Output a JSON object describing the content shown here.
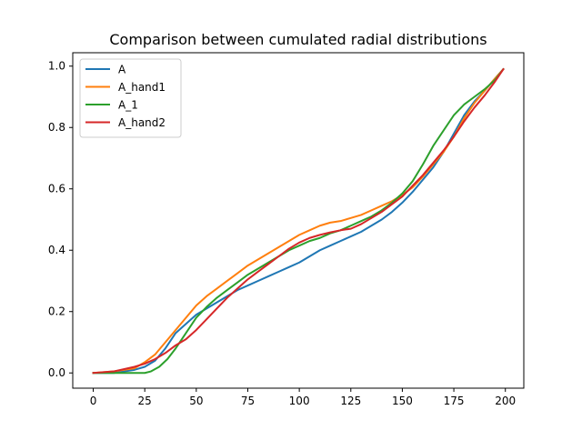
{
  "chart_data": {
    "type": "line",
    "title": "Comparison between cumulated radial distributions",
    "xlabel": "",
    "ylabel": "",
    "xlim": [
      -9.95,
      208.95
    ],
    "ylim": [
      -0.0497,
      1.0437
    ],
    "x_ticks": [
      0,
      25,
      50,
      75,
      100,
      125,
      150,
      175,
      200
    ],
    "x_tick_labels": [
      "0",
      "25",
      "50",
      "75",
      "100",
      "125",
      "150",
      "175",
      "200"
    ],
    "y_ticks": [
      0.0,
      0.2,
      0.4,
      0.6,
      0.8,
      1.0
    ],
    "y_tick_labels": [
      "0.0",
      "0.2",
      "0.4",
      "0.6",
      "0.8",
      "1.0"
    ],
    "grid": false,
    "legend_position": "upper-left",
    "series": [
      {
        "name": "A",
        "color": "#1f77b4",
        "x": [
          0,
          10,
          20,
          25,
          30,
          35,
          40,
          45,
          50,
          55,
          60,
          65,
          70,
          75,
          80,
          85,
          90,
          95,
          100,
          105,
          110,
          115,
          120,
          125,
          130,
          135,
          140,
          145,
          150,
          155,
          160,
          165,
          170,
          175,
          180,
          185,
          190,
          195,
          199
        ],
        "y": [
          0.0,
          0.0,
          0.01,
          0.02,
          0.04,
          0.08,
          0.13,
          0.16,
          0.19,
          0.21,
          0.23,
          0.25,
          0.27,
          0.285,
          0.3,
          0.315,
          0.33,
          0.345,
          0.36,
          0.38,
          0.4,
          0.415,
          0.43,
          0.445,
          0.46,
          0.48,
          0.5,
          0.525,
          0.555,
          0.59,
          0.63,
          0.67,
          0.72,
          0.78,
          0.84,
          0.885,
          0.92,
          0.96,
          0.99
        ]
      },
      {
        "name": "A_hand1",
        "color": "#ff7f0e",
        "x": [
          0,
          10,
          20,
          25,
          30,
          35,
          40,
          45,
          50,
          55,
          60,
          65,
          70,
          75,
          80,
          85,
          90,
          95,
          100,
          105,
          110,
          115,
          120,
          125,
          130,
          135,
          140,
          145,
          150,
          155,
          160,
          165,
          170,
          175,
          180,
          185,
          190,
          195,
          199
        ],
        "y": [
          0.0,
          0.005,
          0.015,
          0.035,
          0.06,
          0.1,
          0.14,
          0.18,
          0.22,
          0.25,
          0.275,
          0.3,
          0.325,
          0.35,
          0.37,
          0.39,
          0.41,
          0.43,
          0.45,
          0.465,
          0.48,
          0.49,
          0.495,
          0.505,
          0.515,
          0.53,
          0.545,
          0.56,
          0.58,
          0.605,
          0.64,
          0.68,
          0.72,
          0.77,
          0.83,
          0.88,
          0.92,
          0.96,
          0.99
        ]
      },
      {
        "name": "A_1",
        "color": "#2ca02c",
        "x": [
          0,
          10,
          20,
          25,
          28,
          32,
          36,
          40,
          45,
          50,
          55,
          60,
          65,
          70,
          75,
          80,
          85,
          90,
          95,
          100,
          105,
          110,
          115,
          120,
          125,
          130,
          135,
          140,
          145,
          150,
          155,
          160,
          165,
          170,
          175,
          180,
          185,
          190,
          195,
          199
        ],
        "y": [
          0.0,
          0.0,
          0.0,
          0.0,
          0.005,
          0.02,
          0.045,
          0.08,
          0.13,
          0.18,
          0.215,
          0.245,
          0.27,
          0.295,
          0.32,
          0.34,
          0.36,
          0.38,
          0.4,
          0.415,
          0.43,
          0.44,
          0.455,
          0.465,
          0.48,
          0.495,
          0.51,
          0.53,
          0.555,
          0.585,
          0.625,
          0.68,
          0.74,
          0.79,
          0.84,
          0.875,
          0.9,
          0.925,
          0.955,
          0.99
        ]
      },
      {
        "name": "A_hand2",
        "color": "#d62728",
        "x": [
          0,
          10,
          20,
          25,
          30,
          35,
          40,
          45,
          50,
          55,
          60,
          65,
          70,
          75,
          80,
          85,
          90,
          95,
          100,
          105,
          110,
          115,
          120,
          125,
          130,
          135,
          140,
          145,
          150,
          155,
          160,
          165,
          170,
          175,
          180,
          185,
          190,
          195,
          199
        ],
        "y": [
          0.0,
          0.005,
          0.02,
          0.03,
          0.045,
          0.065,
          0.09,
          0.11,
          0.14,
          0.175,
          0.21,
          0.245,
          0.275,
          0.305,
          0.33,
          0.355,
          0.38,
          0.405,
          0.425,
          0.44,
          0.45,
          0.458,
          0.465,
          0.47,
          0.485,
          0.505,
          0.525,
          0.55,
          0.575,
          0.61,
          0.645,
          0.685,
          0.725,
          0.77,
          0.82,
          0.865,
          0.905,
          0.95,
          0.99
        ]
      }
    ]
  }
}
